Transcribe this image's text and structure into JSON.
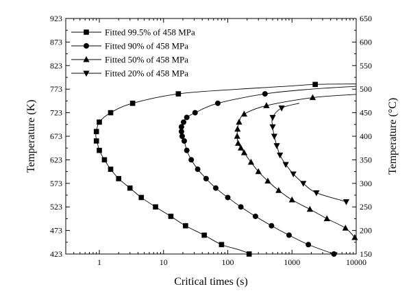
{
  "chart_data": {
    "type": "scatter",
    "title": "",
    "xlabel": "Critical times (s)",
    "ylabel": "Temperature (K)",
    "ylabel_right": "Temperature (°C)",
    "xscale": "log",
    "xlim": [
      0.3,
      10000
    ],
    "ylim": [
      423,
      923
    ],
    "ylim_right": [
      150,
      650
    ],
    "x_ticks": [
      1,
      10,
      100,
      1000,
      10000
    ],
    "x_tick_labels": [
      "1",
      "10",
      "100",
      "1000",
      "10000"
    ],
    "y_ticks": [
      423,
      473,
      523,
      573,
      623,
      673,
      723,
      773,
      823,
      873,
      923
    ],
    "y_tick_labels": [
      "423",
      "473",
      "523",
      "573",
      "623",
      "673",
      "723",
      "773",
      "823",
      "873",
      "923"
    ],
    "y_right_ticks": [
      150,
      200,
      250,
      300,
      350,
      400,
      450,
      500,
      550,
      600,
      650
    ],
    "y_right_tick_labels": [
      "150",
      "200",
      "250",
      "300",
      "350",
      "400",
      "450",
      "500",
      "550",
      "600",
      "650"
    ],
    "legend_position": "top-left",
    "grid": false,
    "series": [
      {
        "name": "Fitted 99.5% of 458 MPa",
        "marker": "square",
        "x": [
          215,
          80,
          43,
          22,
          13,
          7.5,
          4.5,
          3.0,
          2.0,
          1.5,
          1.2,
          1.0,
          0.9,
          0.9,
          1.0,
          1.5,
          3.3,
          17,
          2300
        ],
        "y": [
          423,
          443,
          463,
          483,
          503,
          523,
          543,
          563,
          583,
          603,
          623,
          643,
          663,
          683,
          703,
          723,
          743,
          763,
          783
        ],
        "curve_x": [
          250,
          150,
          80,
          43,
          22,
          13,
          7.5,
          4.5,
          3.0,
          2.0,
          1.5,
          1.2,
          1.0,
          0.92,
          0.88,
          0.9,
          1.0,
          1.5,
          3.3,
          17,
          150,
          800,
          2300,
          10000
        ],
        "curve_y": [
          421,
          432,
          443,
          463,
          483,
          503,
          523,
          543,
          563,
          583,
          603,
          623,
          643,
          663,
          673,
          683,
          703,
          723,
          743,
          763,
          773,
          779,
          783,
          784
        ]
      },
      {
        "name": "Fitted 90% of 458 MPa",
        "marker": "circle",
        "x": [
          4500,
          1800,
          900,
          480,
          270,
          160,
          100,
          65,
          46,
          34,
          27,
          23,
          21,
          19.5,
          19,
          19,
          20.5,
          23,
          31,
          70,
          380
        ],
        "y": [
          423,
          443,
          463,
          483,
          503,
          523,
          543,
          563,
          583,
          603,
          623,
          643,
          663,
          673,
          683,
          693,
          703,
          713,
          723,
          743,
          763
        ],
        "curve_x": [
          5300,
          4500,
          1800,
          900,
          480,
          270,
          160,
          100,
          65,
          46,
          34,
          27,
          23,
          21,
          19.5,
          19,
          19,
          20.5,
          23,
          31,
          70,
          380,
          2000,
          10000
        ],
        "curve_y": [
          420,
          423,
          443,
          463,
          483,
          503,
          523,
          543,
          563,
          583,
          603,
          623,
          643,
          663,
          673,
          683,
          693,
          703,
          713,
          723,
          743,
          763,
          773,
          779
        ]
      },
      {
        "name": "Fitted 50% of 458 MPa",
        "marker": "triangle-up",
        "x": [
          9500,
          6800,
          3500,
          1900,
          1000,
          620,
          420,
          300,
          230,
          180,
          160,
          145,
          140,
          142,
          150,
          180,
          400,
          2100
        ],
        "y": [
          458,
          478,
          498,
          518,
          538,
          558,
          578,
          598,
          618,
          638,
          648,
          658,
          673,
          688,
          703,
          720,
          738,
          755
        ],
        "curve_x": [
          10000,
          9500,
          6800,
          3500,
          1900,
          1000,
          620,
          420,
          300,
          230,
          180,
          160,
          145,
          140,
          142,
          150,
          180,
          400,
          2100,
          10000
        ],
        "curve_y": [
          456,
          458,
          478,
          498,
          518,
          538,
          558,
          578,
          598,
          618,
          638,
          648,
          658,
          673,
          688,
          703,
          720,
          738,
          755,
          762
        ]
      },
      {
        "name": "Fitted 20% of 458 MPa",
        "marker": "triangle-down",
        "x": [
          7000,
          2400,
          1500,
          1050,
          800,
          650,
          580,
          530,
          500,
          500,
          690
        ],
        "y": [
          534,
          553,
          573,
          593,
          613,
          633,
          653,
          673,
          693,
          713,
          733
        ],
        "curve_x": [
          7000,
          2400,
          1500,
          1050,
          800,
          650,
          580,
          530,
          500,
          500,
          690,
          1300
        ],
        "curve_y": [
          534,
          553,
          573,
          593,
          613,
          633,
          653,
          673,
          693,
          713,
          733,
          743
        ]
      }
    ]
  }
}
